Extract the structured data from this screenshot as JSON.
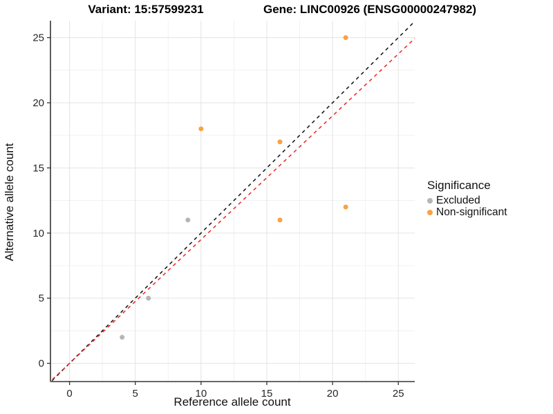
{
  "chart_data": {
    "type": "scatter",
    "title_left": "Variant: 15:57599231",
    "title_right": "Gene: LINC00926 (ENSG00000247982)",
    "xlabel": "Reference allele count",
    "ylabel": "Alternative allele count",
    "xlim": [
      -1.45,
      26.25
    ],
    "ylim": [
      -1.4,
      26.3
    ],
    "xticks": [
      0,
      5,
      10,
      15,
      20,
      25
    ],
    "yticks": [
      0,
      5,
      10,
      15,
      20,
      25
    ],
    "grid": {
      "major": true,
      "minor": true,
      "major_color": "#e3e3e3",
      "minor_color": "#f1f1f1"
    },
    "axis_color": "#333333",
    "tick_label_color": "#262626",
    "series": [
      {
        "name": "Excluded",
        "color": "#b5b5b5",
        "points": [
          [
            4,
            2
          ],
          [
            6,
            5
          ],
          [
            9,
            11
          ]
        ]
      },
      {
        "name": "Non-significant",
        "color": "#f9a242",
        "points": [
          [
            10,
            18
          ],
          [
            16,
            11
          ],
          [
            16,
            17
          ],
          [
            21,
            12
          ],
          [
            21,
            25
          ]
        ]
      }
    ],
    "ref_lines": [
      {
        "name": "identity-reference-line",
        "slope": 1,
        "intercept": 0,
        "style": "dashed",
        "color": "#1a1a1a"
      },
      {
        "name": "ratio-reference-line",
        "slope": 0.95,
        "intercept": 0,
        "style": "dashed",
        "color": "#ee2c2c"
      }
    ],
    "legend": {
      "title": "Significance",
      "position": "right",
      "items": [
        {
          "label": "Excluded",
          "color": "#b5b5b5"
        },
        {
          "label": "Non-significant",
          "color": "#f9a242"
        }
      ]
    }
  }
}
